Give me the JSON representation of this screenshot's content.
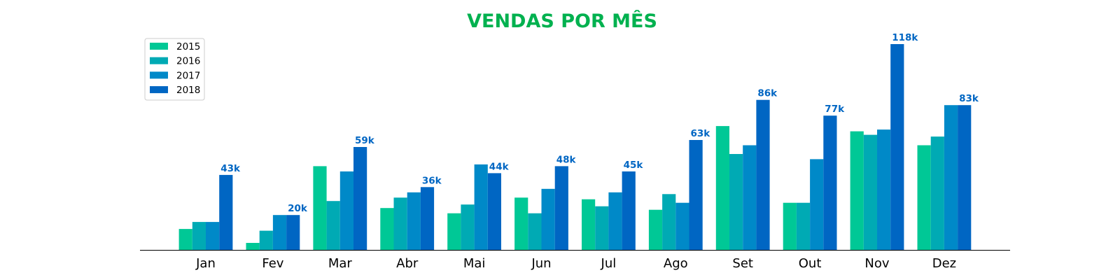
{
  "chart_data": {
    "type": "bar",
    "title": "VENDAS POR MÊS",
    "xlabel": "",
    "ylabel": "",
    "categories": [
      "Jan",
      "Fev",
      "Mar",
      "Abr",
      "Mai",
      "Jun",
      "Jul",
      "Ago",
      "Set",
      "Out",
      "Nov",
      "Dez"
    ],
    "series": [
      {
        "name": "2015",
        "color": "#00c896",
        "values": [
          12,
          4,
          48,
          24,
          21,
          30,
          29,
          23,
          71,
          27,
          68,
          60
        ]
      },
      {
        "name": "2016",
        "color": "#00aab4",
        "values": [
          16,
          11,
          28,
          30,
          26,
          21,
          25,
          32,
          55,
          27,
          66,
          65
        ]
      },
      {
        "name": "2017",
        "color": "#0089c8",
        "values": [
          16,
          20,
          45,
          33,
          49,
          35,
          33,
          27,
          60,
          52,
          69,
          83
        ]
      },
      {
        "name": "2018",
        "color": "#0066c3",
        "values": [
          43,
          20,
          59,
          36,
          44,
          48,
          45,
          63,
          86,
          77,
          118,
          83
        ]
      }
    ],
    "data_labels": {
      "series": "2018",
      "texts": [
        "43k",
        "20k",
        "59k",
        "36k",
        "44k",
        "48k",
        "45k",
        "63k",
        "86k",
        "77k",
        "118k",
        "83k"
      ],
      "color": "#0066c3"
    },
    "title_color": "#00b14f",
    "ylim": [
      0,
      118
    ],
    "y_axis_visible": false,
    "grid": false,
    "legend_position": "top-left"
  }
}
